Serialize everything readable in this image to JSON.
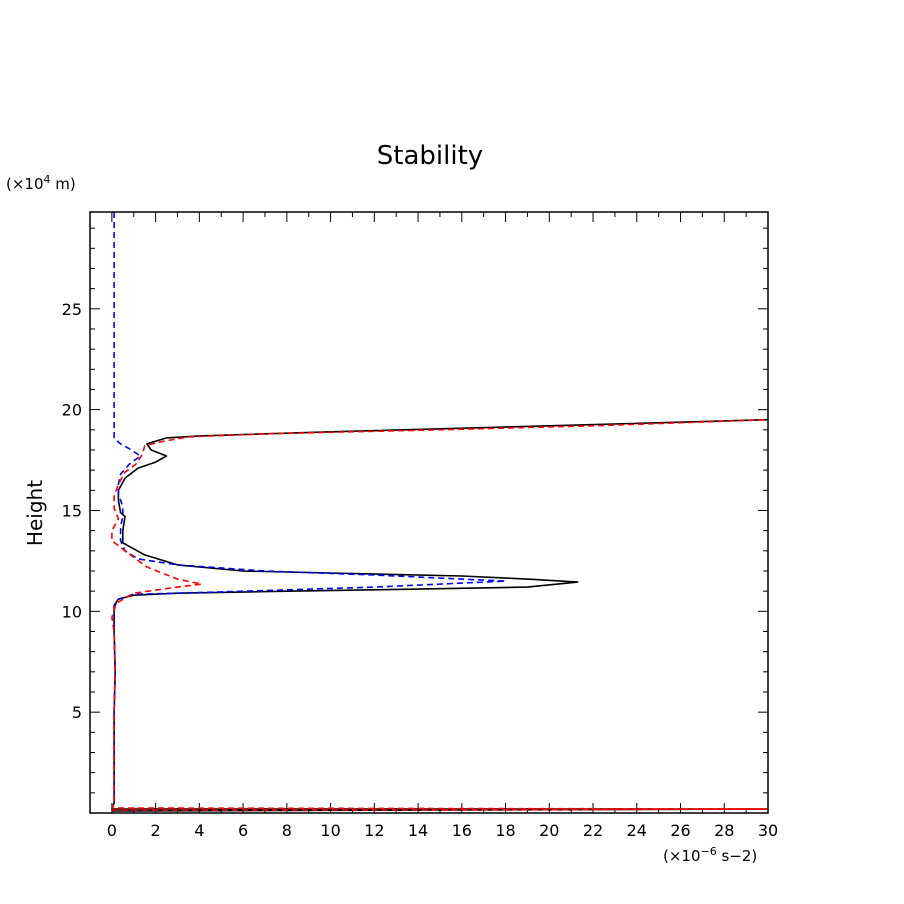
{
  "chart_data": {
    "type": "line",
    "title": "Stability",
    "xlabel": "",
    "ylabel": "Height",
    "x_unit_prefix": "(×10",
    "x_unit_exponent": "−6",
    "x_unit_suffix": " s−2)",
    "y_unit_prefix": "(×10",
    "y_unit_exponent": "4",
    "y_unit_suffix": " m)",
    "xlim": [
      -1,
      30
    ],
    "ylim": [
      0,
      29.8
    ],
    "x_ticks": [
      0,
      2,
      4,
      6,
      8,
      10,
      12,
      14,
      16,
      18,
      20,
      22,
      24,
      26,
      28,
      30
    ],
    "x_tick_labels": [
      "0",
      "2",
      "4",
      "6",
      "8",
      "10",
      "12",
      "14",
      "16",
      "18",
      "20",
      "22",
      "24",
      "26",
      "28",
      "30"
    ],
    "y_ticks": [
      5,
      10,
      15,
      20,
      25
    ],
    "y_tick_labels": [
      "5",
      "10",
      "15",
      "20",
      "25"
    ],
    "grid": false,
    "series": [
      {
        "color": "#000000",
        "dash": "solid",
        "points": [
          [
            0,
            0.1
          ],
          [
            15,
            0.15
          ],
          [
            30,
            0.2
          ],
          [
            0,
            0.2
          ],
          [
            0.1,
            0.5
          ],
          [
            0.1,
            5
          ],
          [
            0.15,
            7
          ],
          [
            0.1,
            9
          ],
          [
            0.1,
            10.3
          ],
          [
            0.3,
            10.6
          ],
          [
            1,
            10.8
          ],
          [
            3,
            10.9
          ],
          [
            8,
            11.0
          ],
          [
            14,
            11.1
          ],
          [
            19,
            11.2
          ],
          [
            21.3,
            11.45
          ],
          [
            19,
            11.6
          ],
          [
            16,
            11.75
          ],
          [
            10,
            11.9
          ],
          [
            6,
            12.0
          ],
          [
            3,
            12.3
          ],
          [
            1.5,
            12.8
          ],
          [
            0.5,
            13.4
          ],
          [
            0.5,
            14.0
          ],
          [
            0.6,
            14.7
          ],
          [
            0.4,
            14.9
          ],
          [
            0.3,
            15.5
          ],
          [
            0.3,
            16.0
          ],
          [
            0.6,
            16.6
          ],
          [
            1.2,
            17.1
          ],
          [
            2.0,
            17.4
          ],
          [
            2.5,
            17.7
          ],
          [
            1.8,
            18.0
          ],
          [
            1.6,
            18.3
          ],
          [
            2.5,
            18.6
          ],
          [
            4,
            18.7
          ],
          [
            10,
            18.9
          ],
          [
            20,
            19.2
          ],
          [
            30,
            19.5
          ]
        ]
      },
      {
        "color": "#0000ff",
        "dash": "dashed",
        "points": [
          [
            0.1,
            29.8
          ],
          [
            0.1,
            25
          ],
          [
            0.1,
            20
          ],
          [
            0.1,
            18.6
          ],
          [
            0.4,
            18.3
          ],
          [
            0.9,
            18.0
          ],
          [
            1.3,
            17.7
          ],
          [
            0.8,
            17.3
          ],
          [
            0.4,
            16.8
          ],
          [
            0.3,
            16.3
          ],
          [
            0.3,
            15.8
          ],
          [
            0.5,
            15.2
          ],
          [
            0.5,
            14.7
          ],
          [
            0.4,
            14.2
          ],
          [
            0.4,
            13.5
          ],
          [
            0.6,
            13.0
          ],
          [
            1.2,
            12.6
          ],
          [
            3,
            12.3
          ],
          [
            7,
            12.0
          ],
          [
            12,
            11.8
          ],
          [
            16,
            11.6
          ],
          [
            18,
            11.5
          ],
          [
            16,
            11.4
          ],
          [
            12,
            11.2
          ],
          [
            6,
            11.0
          ],
          [
            3,
            10.9
          ],
          [
            1,
            10.85
          ],
          [
            0.3,
            10.6
          ],
          [
            0.1,
            10.2
          ],
          [
            0.1,
            9
          ],
          [
            0.15,
            7
          ],
          [
            0.1,
            5
          ],
          [
            0.1,
            0.5
          ]
        ]
      },
      {
        "color": "#ff0000",
        "dash": "dashed",
        "points": [
          [
            0,
            0.15
          ],
          [
            15,
            0.15
          ],
          [
            30,
            0.2
          ],
          [
            0,
            0.25
          ],
          [
            0.1,
            0.5
          ],
          [
            0.1,
            5
          ],
          [
            0.15,
            7
          ],
          [
            0.1,
            9
          ],
          [
            0,
            9.7
          ],
          [
            0.2,
            10.4
          ],
          [
            1,
            10.9
          ],
          [
            3,
            11.2
          ],
          [
            4.1,
            11.35
          ],
          [
            3,
            11.6
          ],
          [
            1.6,
            12.2
          ],
          [
            0.6,
            13.0
          ],
          [
            0,
            13.5
          ],
          [
            0,
            14.0
          ],
          [
            0.3,
            14.6
          ],
          [
            0.1,
            15.1
          ],
          [
            0.1,
            15.7
          ],
          [
            0.3,
            16.3
          ],
          [
            0.6,
            16.9
          ],
          [
            1.1,
            17.3
          ],
          [
            1.4,
            17.8
          ],
          [
            1.5,
            18.2
          ],
          [
            2.2,
            18.4
          ],
          [
            3.5,
            18.65
          ],
          [
            7,
            18.8
          ],
          [
            15,
            19.0
          ],
          [
            22,
            19.2
          ],
          [
            30,
            19.5
          ]
        ]
      }
    ]
  }
}
